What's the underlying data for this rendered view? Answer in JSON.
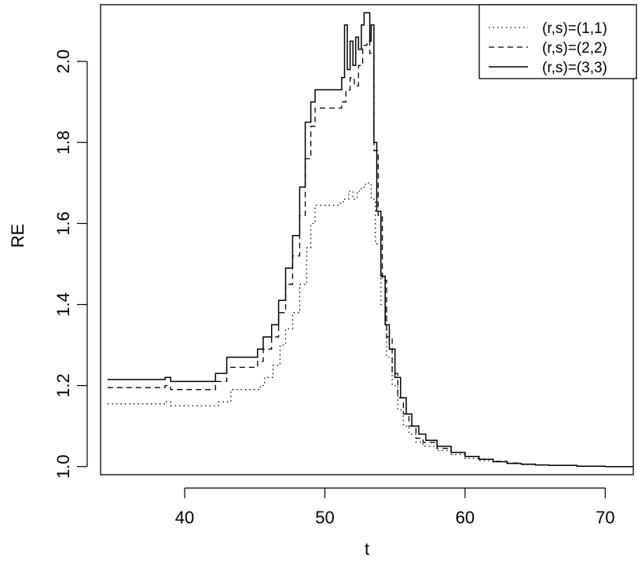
{
  "chart_data": {
    "type": "line",
    "title": "",
    "xlabel": "t",
    "ylabel": "RE",
    "xlim": [
      34,
      72
    ],
    "ylim": [
      0.98,
      2.14
    ],
    "xticks": [
      40,
      50,
      60,
      70
    ],
    "xtick_labels": [
      "40",
      "50",
      "60",
      "70"
    ],
    "yticks": [
      1.0,
      1.2,
      1.4,
      1.6,
      1.8,
      2.0
    ],
    "ytick_labels": [
      "1.0",
      "1.2",
      "1.4",
      "1.6",
      "1.8",
      "2.0"
    ],
    "grid": false,
    "legend": {
      "position": "top-right"
    },
    "series": [
      {
        "name": "(r,s)=(1,1)",
        "style": "dotted",
        "x": [
          34.5,
          38.3,
          38.6,
          39.0,
          41.8,
          42.4,
          43.3,
          45.4,
          45.7,
          46.3,
          46.8,
          47.2,
          47.7,
          48.2,
          48.7,
          49.0,
          49.3,
          50.0,
          51.0,
          51.3,
          51.7,
          52.0,
          52.3,
          52.6,
          52.9,
          53.3,
          53.6,
          54.0,
          54.4,
          54.8,
          55.2,
          55.6,
          56.0,
          56.5,
          57.0,
          58.0,
          59.0,
          60.0,
          61.0,
          62.0,
          63.0,
          64.0,
          65.0,
          66.0,
          68.0,
          70.0,
          72.0
        ],
        "y": [
          1.155,
          1.155,
          1.16,
          1.15,
          1.15,
          1.16,
          1.19,
          1.2,
          1.22,
          1.25,
          1.3,
          1.34,
          1.38,
          1.45,
          1.54,
          1.6,
          1.645,
          1.645,
          1.65,
          1.66,
          1.68,
          1.66,
          1.68,
          1.69,
          1.7,
          1.66,
          1.55,
          1.4,
          1.27,
          1.2,
          1.14,
          1.1,
          1.08,
          1.06,
          1.05,
          1.04,
          1.03,
          1.02,
          1.015,
          1.012,
          1.008,
          1.005,
          1.004,
          1.003,
          1.001,
          1.0,
          1.0
        ]
      },
      {
        "name": "(r,s)=(2,2)",
        "style": "dashed",
        "x": [
          34.5,
          38.3,
          38.6,
          39.0,
          41.8,
          42.2,
          43.0,
          45.2,
          45.6,
          46.2,
          46.7,
          47.2,
          47.7,
          48.2,
          48.6,
          49.0,
          49.3,
          50.0,
          51.2,
          51.5,
          51.8,
          52.1,
          52.4,
          52.7,
          53.0,
          53.2,
          53.5,
          53.8,
          54.1,
          54.4,
          54.8,
          55.2,
          55.6,
          56.0,
          56.5,
          57.0,
          58.0,
          59.0,
          60.0,
          61.0,
          62.0,
          63.0,
          64.0,
          65.0,
          66.0,
          68.0,
          70.0,
          72.0
        ],
        "y": [
          1.195,
          1.195,
          1.2,
          1.19,
          1.19,
          1.21,
          1.245,
          1.26,
          1.29,
          1.32,
          1.38,
          1.45,
          1.52,
          1.62,
          1.76,
          1.84,
          1.885,
          1.885,
          1.9,
          1.93,
          1.96,
          1.94,
          1.99,
          2.04,
          2.05,
          2.02,
          1.78,
          1.62,
          1.46,
          1.32,
          1.23,
          1.17,
          1.13,
          1.1,
          1.07,
          1.06,
          1.045,
          1.035,
          1.025,
          1.018,
          1.013,
          1.009,
          1.006,
          1.004,
          1.003,
          1.001,
          1.0,
          1.0
        ]
      },
      {
        "name": "(r,s)=(3,3)",
        "style": "solid",
        "x": [
          34.5,
          38.3,
          38.6,
          39.0,
          41.8,
          42.2,
          43.0,
          45.2,
          45.6,
          46.2,
          46.7,
          47.2,
          47.7,
          48.2,
          48.6,
          49.0,
          49.3,
          50.0,
          51.0,
          51.2,
          51.4,
          51.6,
          51.8,
          52.0,
          52.2,
          52.4,
          52.6,
          52.8,
          53.0,
          53.2,
          53.3,
          53.5,
          53.7,
          54.0,
          54.3,
          54.6,
          55.0,
          55.4,
          55.8,
          56.2,
          56.7,
          57.2,
          58.0,
          59.0,
          60.0,
          61.0,
          62.0,
          63.0,
          64.0,
          65.0,
          66.0,
          68.0,
          70.0,
          72.0
        ],
        "y": [
          1.215,
          1.215,
          1.22,
          1.21,
          1.21,
          1.23,
          1.27,
          1.29,
          1.32,
          1.35,
          1.41,
          1.49,
          1.57,
          1.69,
          1.85,
          1.9,
          1.93,
          1.93,
          1.93,
          1.96,
          2.09,
          1.98,
          2.05,
          1.99,
          2.06,
          2.03,
          2.09,
          2.12,
          2.12,
          2.05,
          2.09,
          1.8,
          1.63,
          1.47,
          1.35,
          1.29,
          1.22,
          1.17,
          1.13,
          1.1,
          1.08,
          1.065,
          1.05,
          1.035,
          1.025,
          1.018,
          1.012,
          1.008,
          1.006,
          1.004,
          1.003,
          1.001,
          1.0,
          1.0
        ]
      }
    ]
  }
}
